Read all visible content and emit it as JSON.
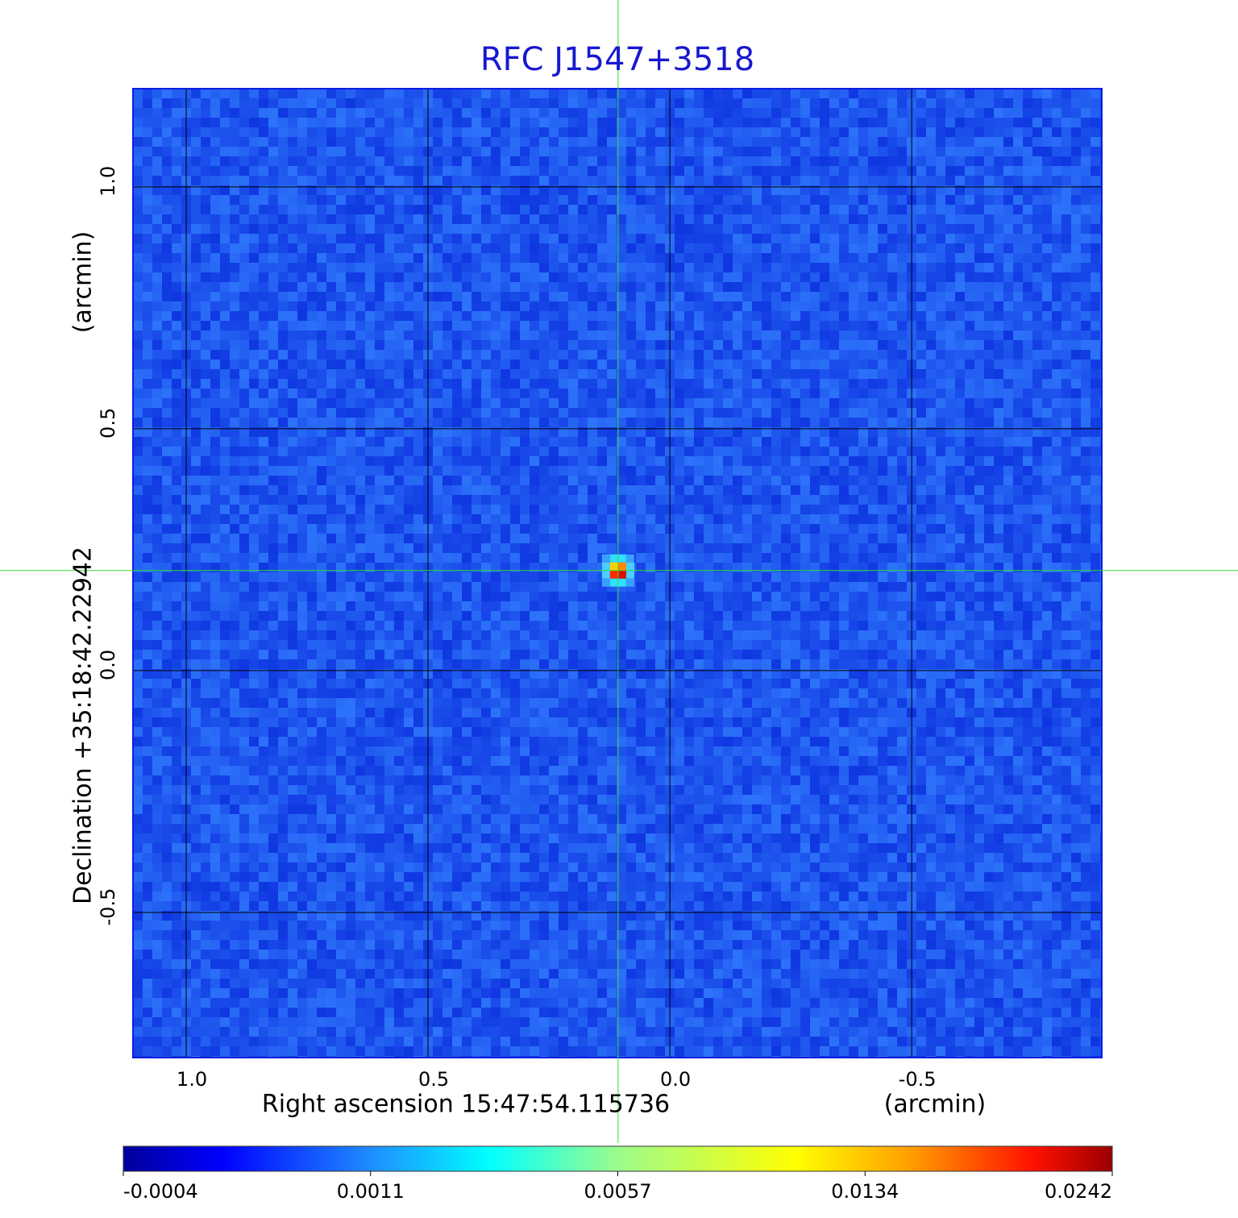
{
  "chart_data": {
    "type": "image",
    "title": "RFC J1547+3518",
    "x_label": "Right ascension  15:47:54.115736",
    "x_unit": "(arcmin)",
    "y_label": "Declination  +35:18:42.22942",
    "y_unit": "(arcmin)",
    "xlim": [
      1.11,
      -0.893
    ],
    "ylim": [
      -0.8,
      1.203
    ],
    "xticks": [
      {
        "value": 1,
        "label": "1.0"
      },
      0.5,
      {
        "value": 0,
        "label": "0.0"
      },
      -0.5
    ],
    "yticks": [
      {
        "value": 1,
        "label": "1.0"
      },
      0.5,
      {
        "value": 0,
        "label": "0.0"
      },
      -0.5
    ],
    "grid": true,
    "grid_color": "#000000",
    "crosshair": {
      "x": 0.107,
      "y": 0.207,
      "color": "#33dd33"
    },
    "colormap": "jet",
    "colorbar_ticks": [
      -0.0004,
      0.0011,
      0.0057,
      0.0134,
      0.0242
    ]
  }
}
